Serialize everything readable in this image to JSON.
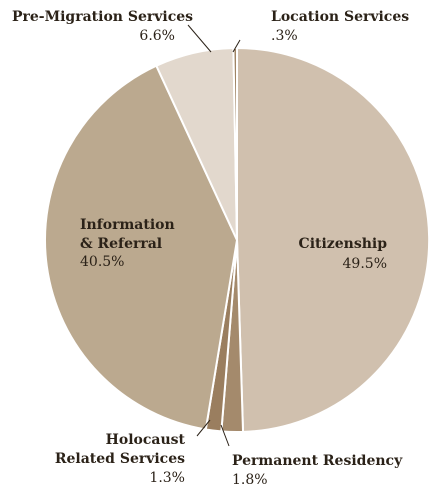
{
  "chart_data": {
    "type": "pie",
    "title": "",
    "start": "top",
    "direction": "clockwise",
    "slices": [
      {
        "id": "citizenship",
        "name": "Citizenship",
        "value": 49.5,
        "pct_label": "49.5%",
        "color": "#d0c0ae"
      },
      {
        "id": "permanent-residency",
        "name": "Permanent Residency",
        "value": 1.8,
        "pct_label": "1.8%",
        "color": "#a48a6c"
      },
      {
        "id": "holocaust",
        "name": "Holocaust Related Services",
        "name_lines": [
          "Holocaust",
          "Related Services"
        ],
        "value": 1.3,
        "pct_label": "1.3%",
        "color": "#9a7e5f"
      },
      {
        "id": "info-referral",
        "name": "Information & Referral",
        "name_lines": [
          "Information",
          "& Referral"
        ],
        "value": 40.5,
        "pct_label": "40.5%",
        "color": "#bba98f"
      },
      {
        "id": "pre-migration",
        "name": "Pre-Migration Services",
        "value": 6.6,
        "pct_label": "6.6%",
        "color": "#e2d8cd"
      },
      {
        "id": "location",
        "name": "Location Services",
        "value": 0.3,
        "pct_label": ".3%",
        "color": "#a08565"
      }
    ]
  }
}
